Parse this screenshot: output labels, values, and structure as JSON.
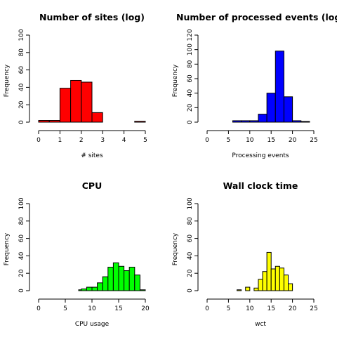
{
  "chart_data": [
    {
      "type": "bar",
      "title": "Number of sites (log)",
      "xlabel": "# sites",
      "ylabel": "Frequency",
      "color": "#ff0000",
      "xlim": [
        0,
        5
      ],
      "ylim": [
        0,
        100
      ],
      "xticks": [
        0,
        1,
        2,
        3,
        4,
        5
      ],
      "yticks": [
        0,
        20,
        40,
        60,
        80,
        100
      ],
      "bins": [
        {
          "x0": 0.0,
          "x1": 0.5,
          "count": 2
        },
        {
          "x0": 0.5,
          "x1": 1.0,
          "count": 2
        },
        {
          "x0": 1.0,
          "x1": 1.5,
          "count": 39
        },
        {
          "x0": 1.5,
          "x1": 2.0,
          "count": 48
        },
        {
          "x0": 2.0,
          "x1": 2.5,
          "count": 46
        },
        {
          "x0": 2.5,
          "x1": 3.0,
          "count": 11
        },
        {
          "x0": 3.0,
          "x1": 3.5,
          "count": 0
        },
        {
          "x0": 3.5,
          "x1": 4.0,
          "count": 0
        },
        {
          "x0": 4.0,
          "x1": 4.5,
          "count": 0
        },
        {
          "x0": 4.5,
          "x1": 5.0,
          "count": 1
        }
      ]
    },
    {
      "type": "bar",
      "title": "Number of processed events (log)",
      "xlabel": "Processing events",
      "ylabel": "Frequency",
      "color": "#0000ff",
      "xlim": [
        0,
        25
      ],
      "ylim": [
        0,
        120
      ],
      "xticks": [
        0,
        5,
        10,
        15,
        20,
        25
      ],
      "yticks": [
        0,
        20,
        40,
        60,
        80,
        100,
        120
      ],
      "bins": [
        {
          "x0": 6,
          "x1": 8,
          "count": 2
        },
        {
          "x0": 8,
          "x1": 10,
          "count": 2
        },
        {
          "x0": 10,
          "x1": 12,
          "count": 2
        },
        {
          "x0": 12,
          "x1": 14,
          "count": 11
        },
        {
          "x0": 14,
          "x1": 16,
          "count": 40
        },
        {
          "x0": 16,
          "x1": 18,
          "count": 98
        },
        {
          "x0": 18,
          "x1": 20,
          "count": 35
        },
        {
          "x0": 20,
          "x1": 22,
          "count": 2
        },
        {
          "x0": 22,
          "x1": 24,
          "count": 1
        }
      ]
    },
    {
      "type": "bar",
      "title": "CPU",
      "xlabel": "CPU usage",
      "ylabel": "Frequency",
      "color": "#00ff00",
      "xlim": [
        0,
        20
      ],
      "ylim": [
        0,
        100
      ],
      "xticks": [
        0,
        5,
        10,
        15,
        20
      ],
      "yticks": [
        0,
        20,
        40,
        60,
        80,
        100
      ],
      "bins": [
        {
          "x0": 7.0,
          "x1": 7.5,
          "count": 0
        },
        {
          "x0": 7.5,
          "x1": 8.0,
          "count": 1
        },
        {
          "x0": 8.0,
          "x1": 9.0,
          "count": 2
        },
        {
          "x0": 9.0,
          "x1": 10.0,
          "count": 4
        },
        {
          "x0": 10.0,
          "x1": 11.0,
          "count": 4
        },
        {
          "x0": 11.0,
          "x1": 12.0,
          "count": 9
        },
        {
          "x0": 12.0,
          "x1": 13.0,
          "count": 16
        },
        {
          "x0": 13.0,
          "x1": 14.0,
          "count": 27
        },
        {
          "x0": 14.0,
          "x1": 15.0,
          "count": 32
        },
        {
          "x0": 15.0,
          "x1": 16.0,
          "count": 28
        },
        {
          "x0": 16.0,
          "x1": 17.0,
          "count": 23
        },
        {
          "x0": 17.0,
          "x1": 18.0,
          "count": 27
        },
        {
          "x0": 18.0,
          "x1": 19.0,
          "count": 18
        },
        {
          "x0": 19.0,
          "x1": 20.0,
          "count": 1
        }
      ]
    },
    {
      "type": "bar",
      "title": "Wall clock time",
      "xlabel": "wct",
      "ylabel": "Frequency",
      "color": "#ffff00",
      "xlim": [
        0,
        25
      ],
      "ylim": [
        0,
        100
      ],
      "xticks": [
        0,
        5,
        10,
        15,
        20,
        25
      ],
      "yticks": [
        0,
        20,
        40,
        60,
        80,
        100
      ],
      "bins": [
        {
          "x0": 7,
          "x1": 8,
          "count": 1
        },
        {
          "x0": 8,
          "x1": 9,
          "count": 0
        },
        {
          "x0": 9,
          "x1": 10,
          "count": 4
        },
        {
          "x0": 10,
          "x1": 11,
          "count": 0
        },
        {
          "x0": 11,
          "x1": 12,
          "count": 3
        },
        {
          "x0": 12,
          "x1": 13,
          "count": 13
        },
        {
          "x0": 13,
          "x1": 14,
          "count": 22
        },
        {
          "x0": 14,
          "x1": 15,
          "count": 44
        },
        {
          "x0": 15,
          "x1": 16,
          "count": 25
        },
        {
          "x0": 16,
          "x1": 17,
          "count": 28
        },
        {
          "x0": 17,
          "x1": 18,
          "count": 26
        },
        {
          "x0": 18,
          "x1": 19,
          "count": 18
        },
        {
          "x0": 19,
          "x1": 20,
          "count": 8
        }
      ]
    }
  ]
}
